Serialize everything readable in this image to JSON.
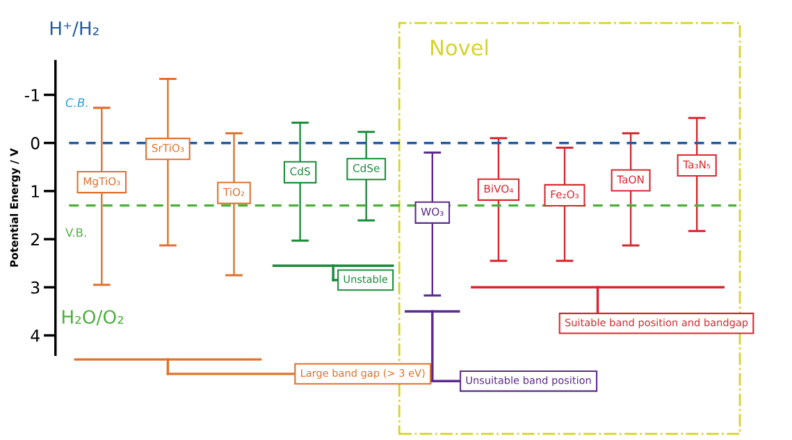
{
  "chart_data": {
    "type": "bar",
    "ylabel": "Potential Energy / V",
    "categories": [
      "MgTiO₃",
      "SrTiO₃",
      "TiO₂",
      "CdS",
      "CdSe",
      "WO₃",
      "BiVO₄",
      "Fe₂O₃",
      "TaON",
      "Ta₃N₅"
    ],
    "base": [
      -0.73,
      -1.33,
      -0.2,
      -0.42,
      -0.23,
      0.2,
      -0.1,
      0.1,
      -0.2,
      -0.52
    ],
    "values": [
      3.68,
      3.46,
      2.95,
      2.45,
      1.84,
      2.97,
      2.55,
      2.35,
      2.33,
      2.35
    ],
    "colors": [
      "#e0702a",
      "#e0702a",
      "#e0702a",
      "#1a8c3a",
      "#1a8c3a",
      "#5b2a8c",
      "#d8262e",
      "#d8262e",
      "#d8262e",
      "#d8262e"
    ],
    "ylim": [
      4.4,
      -1.7
    ],
    "yticks": [
      {
        "value": -1,
        "label": "-1"
      },
      0,
      1,
      2,
      3,
      4
    ],
    "tick_labels": "y",
    "grid": false,
    "legend": false,
    "ref_lines": [
      {
        "axis": "y",
        "value": 0,
        "label": "H⁺/H₂",
        "color": "#1f5a9e",
        "line_style": "dashed"
      },
      {
        "axis": "y",
        "value": 1.3,
        "label": "H₂O/O₂",
        "color": "#4caf3a",
        "line_style": "dashed"
      }
    ],
    "annotations": [
      "C.B.",
      "V.B.",
      "Novel",
      "Large band gap (> 3 eV)",
      "Unstable",
      "Unsuitable band position",
      "Suitable band position and bandgap"
    ]
  }
}
